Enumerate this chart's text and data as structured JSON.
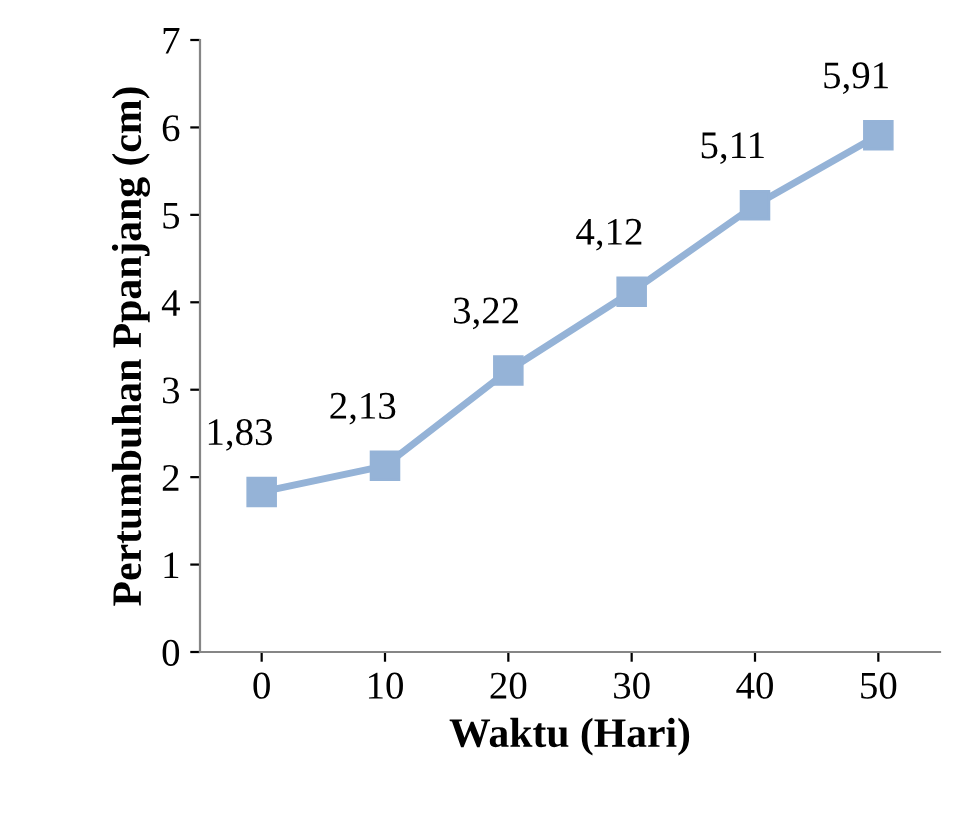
{
  "chart_data": {
    "type": "line",
    "xlabel": "Waktu (Hari)",
    "ylabel": "Pertumbuhan Ppanjang (cm)",
    "categories": [
      "0",
      "10",
      "20",
      "30",
      "40",
      "50"
    ],
    "series": [
      {
        "color": "#95b3d7",
        "values": [
          1.83,
          2.13,
          3.22,
          4.12,
          5.11,
          5.91
        ],
        "value_labels": [
          "1,83",
          "2,13",
          "3,22",
          "4,12",
          "5,11",
          "5,91"
        ]
      }
    ],
    "ylim": [
      0,
      7
    ],
    "yticks": [
      0,
      1,
      2,
      3,
      4,
      5,
      6,
      7
    ],
    "grid": false,
    "legend": false,
    "marker": "square",
    "line_style": "solid"
  }
}
